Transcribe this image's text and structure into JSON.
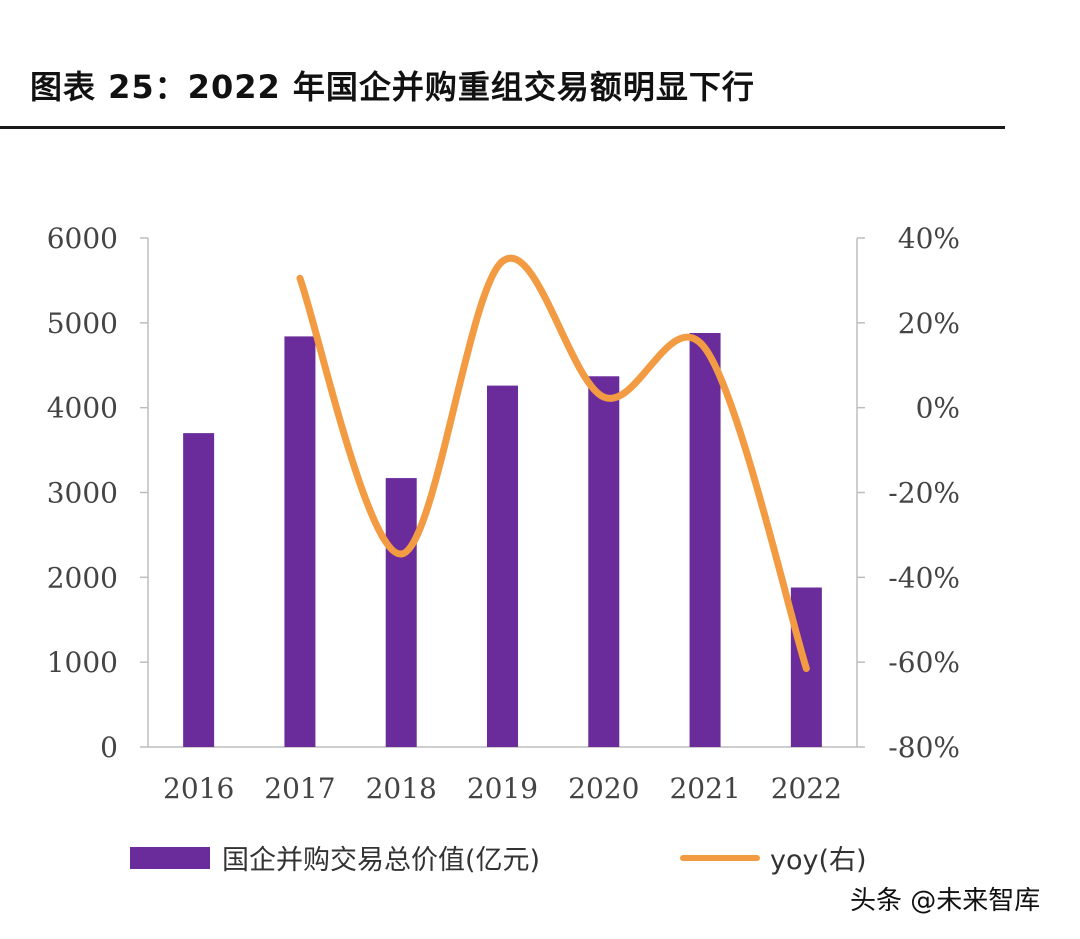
{
  "page": {
    "title": "图表 25：2022 年国企并购重组交易额明显下行",
    "watermark": "头条 @未来智库"
  },
  "colors": {
    "bar": "#6a2c9a",
    "line": "#f29b42",
    "axis": "#bdbdbd"
  },
  "chart_data": {
    "type": "bar+line",
    "title": "图表 25：2022 年国企并购重组交易额明显下行",
    "categories": [
      "2016",
      "2017",
      "2018",
      "2019",
      "2020",
      "2021",
      "2022"
    ],
    "series": [
      {
        "name": "国企并购交易总价值(亿元)",
        "type": "bar",
        "axis": "left",
        "values": [
          3700,
          4840,
          3170,
          4260,
          4370,
          4880,
          1880
        ]
      },
      {
        "name": "yoy(右)",
        "type": "line",
        "axis": "right",
        "values": [
          null,
          30.5,
          -34.5,
          34.5,
          2.5,
          14.0,
          -61.5
        ]
      }
    ],
    "y_left": {
      "min": 0,
      "max": 6000,
      "ticks": [
        "0",
        "1000",
        "2000",
        "3000",
        "4000",
        "5000",
        "6000"
      ]
    },
    "y_right": {
      "min": -80,
      "max": 40,
      "ticks": [
        "-80%",
        "-60%",
        "-40%",
        "-20%",
        "0%",
        "20%",
        "40%"
      ]
    },
    "legend": [
      "国企并购交易总价值(亿元)",
      "yoy(右)"
    ]
  }
}
